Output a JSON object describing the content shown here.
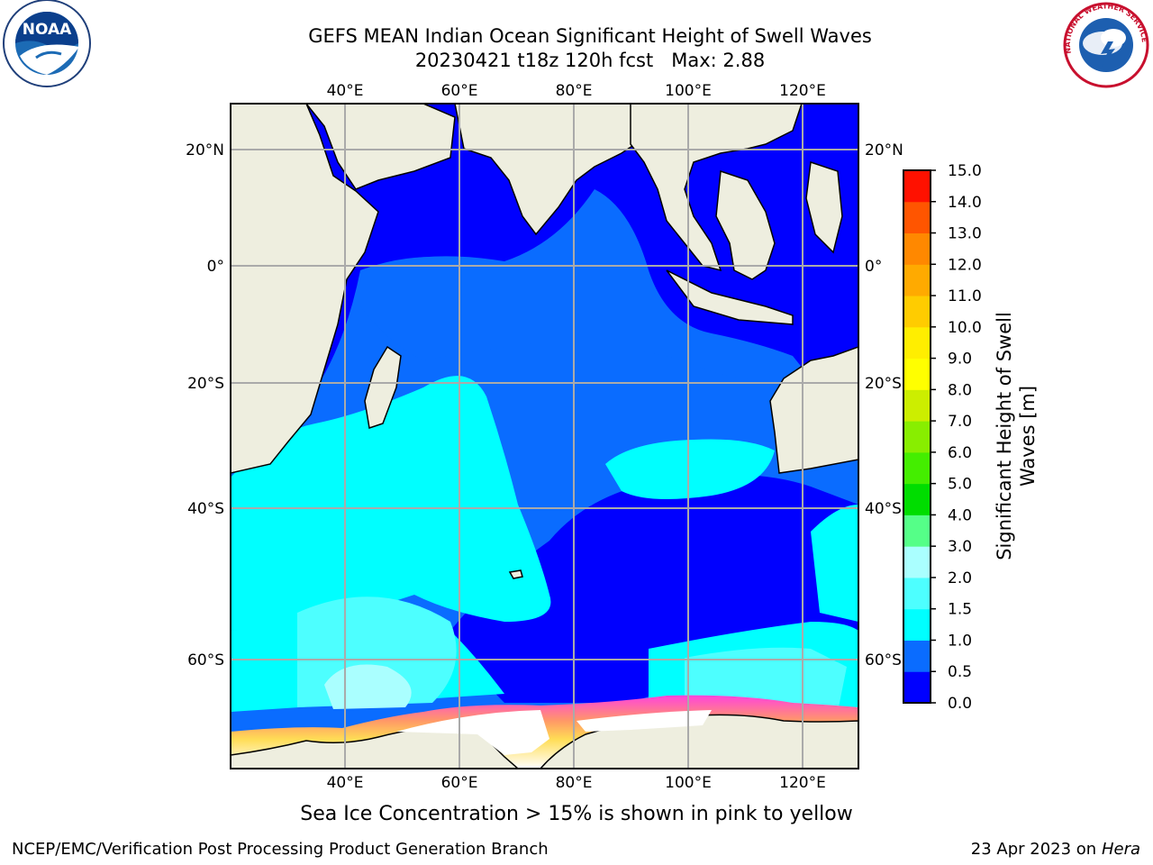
{
  "title": {
    "line1": "GEFS MEAN Indian Ocean Significant Height of Swell Waves",
    "line2": "20230421 t18z 120h fcst",
    "max_label": "Max: 2.88"
  },
  "logos": {
    "left": {
      "icon": "noaa-logo",
      "text": "NOAA"
    },
    "right": {
      "icon": "national-weather-service-logo",
      "text": "NATIONAL WEATHER SERVICE"
    }
  },
  "map": {
    "lon_labels": [
      "40°E",
      "60°E",
      "80°E",
      "100°E",
      "120°E"
    ],
    "lat_labels": [
      "20°N",
      "0°",
      "20°S",
      "40°S",
      "60°S"
    ],
    "land_color": "#eeeedf",
    "ice_color": "#ffffff"
  },
  "colorbar": {
    "label_line1": "Significant Height of Swell",
    "label_line2": "Waves [m]",
    "ticks": [
      "0.0",
      "0.5",
      "1.0",
      "1.5",
      "2.0",
      "3.0",
      "4.0",
      "5.0",
      "6.0",
      "7.0",
      "8.0",
      "9.0",
      "10.0",
      "11.0",
      "12.0",
      "13.0",
      "14.0",
      "15.0"
    ],
    "colors": [
      "#0000ff",
      "#0a6cff",
      "#00ffff",
      "#4dffff",
      "#aaffff",
      "#55ff88",
      "#00dd00",
      "#44ee00",
      "#88ee00",
      "#ccee00",
      "#ffff00",
      "#ffee00",
      "#ffcc00",
      "#ffaa00",
      "#ff8800",
      "#ff5500",
      "#ff1100"
    ]
  },
  "footer": {
    "note": "Sea Ice Concentration > 15% is shown in pink to yellow",
    "credit": "NCEP/EMC/Verification Post Processing Product Generation Branch",
    "date": "23 Apr 2023 on ",
    "host": "Hera"
  }
}
